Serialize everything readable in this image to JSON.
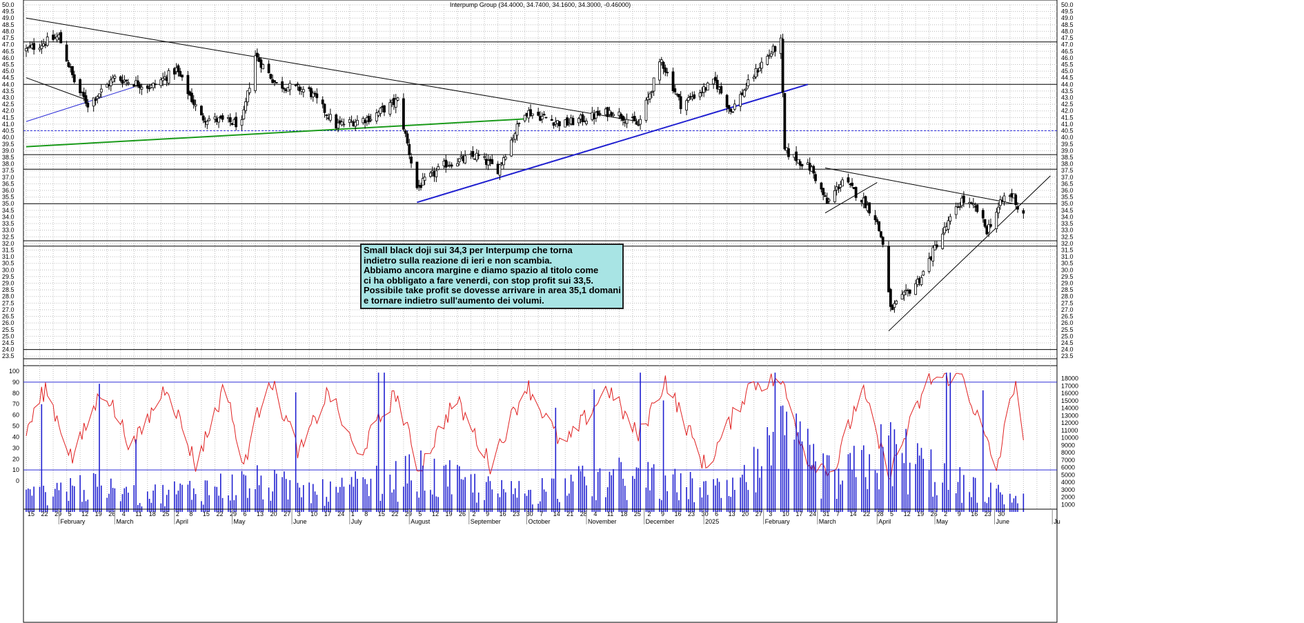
{
  "chart_data": {
    "type": "candlestick",
    "title": "Interpump Group (34.4000, 34.7400, 34.1600, 34.3000, -0.46000)",
    "price_axis": {
      "ylim": [
        23.25,
        50.0
      ],
      "ticks": [
        "50.0",
        "49.5",
        "49.0",
        "48.5",
        "48.0",
        "47.5",
        "47.0",
        "46.5",
        "46.0",
        "45.5",
        "45.0",
        "44.5",
        "44.0",
        "43.5",
        "43.0",
        "42.5",
        "42.0",
        "41.5",
        "41.0",
        "40.5",
        "40.0",
        "39.5",
        "39.0",
        "38.5",
        "38.0",
        "37.5",
        "37.0",
        "36.5",
        "36.0",
        "35.5",
        "35.0",
        "34.5",
        "34.0",
        "33.5",
        "33.0",
        "32.5",
        "32.0",
        "31.5",
        "31.0",
        "30.5",
        "30.0",
        "29.5",
        "29.0",
        "28.5",
        "28.0",
        "27.5",
        "27.0",
        "26.5",
        "26.0",
        "25.5",
        "25.0",
        "24.5",
        "24.0",
        "23.5"
      ]
    },
    "oscillator_axis": {
      "ylim": [
        -10,
        100
      ],
      "ticks": [
        "100",
        "90",
        "80",
        "70",
        "60",
        "50",
        "40",
        "30",
        "20",
        "10",
        "0"
      ],
      "levels": [
        90,
        10
      ]
    },
    "volume_axis": {
      "ylim": [
        0,
        19000
      ],
      "ticks": [
        "18000",
        "17000",
        "16000",
        "15000",
        "14000",
        "13000",
        "12000",
        "11000",
        "10000",
        "9000",
        "8000",
        "7000",
        "6000",
        "5000",
        "4000",
        "3000",
        "2000",
        "1000"
      ]
    },
    "x_axis": {
      "day_labels": [
        "15",
        "22",
        "29",
        "5",
        "12",
        "19",
        "26",
        "4",
        "11",
        "18",
        "25",
        "2",
        "8",
        "15",
        "22",
        "29",
        "6",
        "13",
        "20",
        "27",
        "3",
        "10",
        "17",
        "24",
        "1",
        "8",
        "15",
        "22",
        "29",
        "5",
        "12",
        "19",
        "26",
        "2",
        "9",
        "16",
        "23",
        "30",
        "7",
        "14",
        "21",
        "28",
        "4",
        "11",
        "18",
        "25",
        "2",
        "9",
        "16",
        "23",
        "30",
        "6",
        "13",
        "20",
        "27",
        "3",
        "10",
        "17",
        "24",
        "31",
        "7",
        "14",
        "22",
        "28",
        "5",
        "12",
        "19",
        "26",
        "2",
        "9",
        "16",
        "23",
        "30"
      ],
      "month_labels": [
        "February",
        "March",
        "April",
        "May",
        "June",
        "July",
        "August",
        "September",
        "October",
        "November",
        "December",
        "2025",
        "February",
        "March",
        "April",
        "May",
        "June",
        "Ju"
      ]
    },
    "horizontal_levels": [
      47.2,
      44.0,
      38.7,
      37.6,
      35.0,
      32.2,
      31.8,
      24.0,
      23.3
    ],
    "dotted_levels": [
      40.5
    ],
    "trendlines": [
      {
        "from": [
          "2024-01-15",
          49.0
        ],
        "to": [
          "2024-11-28",
          41.2
        ],
        "color": "#000000"
      },
      {
        "from": [
          "2024-01-15",
          44.5
        ],
        "to": [
          "2024-02-16",
          42.8
        ],
        "color": "#000000"
      },
      {
        "from": [
          "2024-01-15",
          41.2
        ],
        "to": [
          "2024-03-11",
          43.8
        ],
        "color": "#2b2bd6"
      },
      {
        "from": [
          "2024-01-15",
          39.3
        ],
        "to": [
          "2024-10-01",
          41.4
        ],
        "color": "#1a9a1a"
      },
      {
        "from": [
          "2024-08-05",
          35.1
        ],
        "to": [
          "2025-02-24",
          44.0
        ],
        "color": "#1f1fd0"
      },
      {
        "from": [
          "2025-03-05",
          37.7
        ],
        "to": [
          "2025-06-11",
          35.0
        ],
        "color": "#000000"
      },
      {
        "from": [
          "2025-03-05",
          34.3
        ],
        "to": [
          "2025-04-01",
          36.6
        ],
        "color": "#000000"
      },
      {
        "from": [
          "2025-04-07",
          25.4
        ],
        "to": [
          "2025-06-30",
          37.1
        ],
        "color": "#000000"
      }
    ],
    "note_lines": [
      "Small black doji sui 34,3 per Interpump che torna",
      "indietro sulla reazione di ieri e non scambia.",
      "Abbiamo ancora margine e diamo spazio al titolo come",
      "ci ha obbligato a fare venerdi, con stop profit sui 33,5.",
      "Possibile take profit se dovesse arrivare in area 35,1 domani",
      "e tornare indietro sull'aumento dei volumi."
    ],
    "price_anchors": [
      [
        "2024-01-15",
        46.6
      ],
      [
        "2024-02-01",
        47.6
      ],
      [
        "2024-02-10",
        43.8
      ],
      [
        "2024-02-16",
        42.5
      ],
      [
        "2024-03-01",
        44.5
      ],
      [
        "2024-03-20",
        43.8
      ],
      [
        "2024-04-02",
        45.1
      ],
      [
        "2024-04-15",
        41.5
      ],
      [
        "2024-05-06",
        41.0
      ],
      [
        "2024-05-13",
        46.2
      ],
      [
        "2024-05-24",
        44.0
      ],
      [
        "2024-06-10",
        43.5
      ],
      [
        "2024-06-24",
        40.9
      ],
      [
        "2024-07-12",
        41.5
      ],
      [
        "2024-07-26",
        42.8
      ],
      [
        "2024-08-05",
        36.2
      ],
      [
        "2024-08-20",
        38.0
      ],
      [
        "2024-09-05",
        38.6
      ],
      [
        "2024-09-16",
        37.6
      ],
      [
        "2024-09-30",
        42.0
      ],
      [
        "2024-10-20",
        41.0
      ],
      [
        "2024-11-15",
        42.0
      ],
      [
        "2024-11-28",
        40.9
      ],
      [
        "2024-12-10",
        45.8
      ],
      [
        "2024-12-20",
        42.5
      ],
      [
        "2025-01-07",
        44.2
      ],
      [
        "2025-01-15",
        42.0
      ],
      [
        "2025-01-31",
        45.6
      ],
      [
        "2025-02-10",
        47.2
      ],
      [
        "2025-02-12",
        39.0
      ],
      [
        "2025-02-26",
        37.6
      ],
      [
        "2025-03-06",
        35.0
      ],
      [
        "2025-03-14",
        36.8
      ],
      [
        "2025-03-25",
        35.2
      ],
      [
        "2025-03-31",
        34.0
      ],
      [
        "2025-04-04",
        32.0
      ],
      [
        "2025-04-08",
        27.0
      ],
      [
        "2025-04-15",
        28.0
      ],
      [
        "2025-04-24",
        29.5
      ],
      [
        "2025-05-02",
        32.0
      ],
      [
        "2025-05-15",
        35.3
      ],
      [
        "2025-05-23",
        34.5
      ],
      [
        "2025-05-28",
        33.0
      ],
      [
        "2025-06-06",
        35.5
      ],
      [
        "2025-06-11",
        35.6
      ],
      [
        "2025-06-13",
        34.7
      ],
      [
        "2025-06-16",
        34.3
      ]
    ],
    "oscillator_anchors": [
      [
        "2024-01-15",
        45
      ],
      [
        "2024-01-25",
        85
      ],
      [
        "2024-02-08",
        20
      ],
      [
        "2024-02-24",
        86
      ],
      [
        "2024-03-10",
        30
      ],
      [
        "2024-03-28",
        88
      ],
      [
        "2024-04-12",
        15
      ],
      [
        "2024-04-28",
        90
      ],
      [
        "2024-05-06",
        10
      ],
      [
        "2024-05-20",
        96
      ],
      [
        "2024-06-05",
        25
      ],
      [
        "2024-06-20",
        82
      ],
      [
        "2024-07-05",
        22
      ],
      [
        "2024-07-25",
        80
      ],
      [
        "2024-08-06",
        10
      ],
      [
        "2024-08-25",
        75
      ],
      [
        "2024-09-12",
        15
      ],
      [
        "2024-10-01",
        88
      ],
      [
        "2024-10-20",
        30
      ],
      [
        "2024-11-12",
        85
      ],
      [
        "2024-11-28",
        40
      ],
      [
        "2024-12-12",
        92
      ],
      [
        "2025-01-02",
        12
      ],
      [
        "2025-01-25",
        88
      ],
      [
        "2025-02-10",
        92
      ],
      [
        "2025-02-24",
        18
      ],
      [
        "2025-03-10",
        10
      ],
      [
        "2025-03-24",
        85
      ],
      [
        "2025-04-07",
        5
      ],
      [
        "2025-04-28",
        92
      ],
      [
        "2025-05-15",
        97
      ],
      [
        "2025-06-02",
        10
      ],
      [
        "2025-06-12",
        95
      ],
      [
        "2025-06-16",
        30
      ]
    ],
    "volume_anchors": [
      [
        "2024-01-15",
        2000
      ],
      [
        "2024-02-08",
        3500
      ],
      [
        "2024-03-15",
        2200
      ],
      [
        "2024-05-13",
        3800
      ],
      [
        "2024-06-20",
        2500
      ],
      [
        "2024-08-06",
        5000
      ],
      [
        "2024-09-20",
        2500
      ],
      [
        "2024-11-20",
        4500
      ],
      [
        "2025-01-15",
        2500
      ],
      [
        "2025-02-12",
        9000
      ],
      [
        "2025-03-10",
        4000
      ],
      [
        "2025-04-08",
        8000
      ],
      [
        "2025-05-15",
        3500
      ],
      [
        "2025-06-16",
        1500
      ]
    ]
  }
}
